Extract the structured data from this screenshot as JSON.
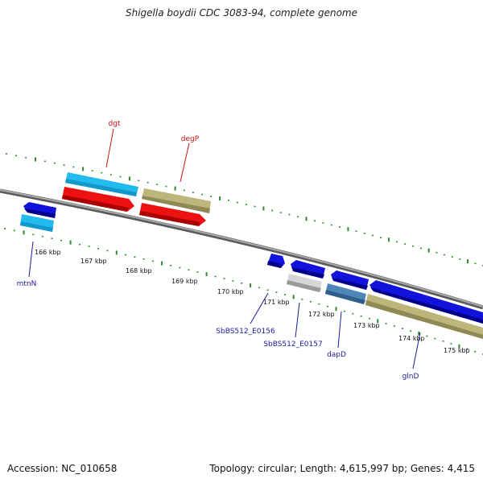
{
  "title": "Shigella boydii CDC 3083-94, complete genome",
  "footer": {
    "accession": "Accession: NC_010658",
    "topology": "Topology: circular; Length: 4,615,997 bp; Genes: 4,415"
  },
  "colors": {
    "backbone": "#8a8a8a",
    "tick": "#2e8b2e",
    "gene_blue": "#1212dd",
    "gene_cyan": "#22bbee",
    "gene_red": "#ee1111",
    "gene_olive": "#bdb57a",
    "gene_steel": "#4f86b8",
    "gene_grey": "#c4c4c4",
    "label_blue": "#1a1aa0",
    "label_red": "#cc1111"
  },
  "scale_labels": [
    "166 kbp",
    "167 kbp",
    "168 kbp",
    "169 kbp",
    "170 kbp",
    "171 kbp",
    "172 kbp",
    "173 kbp",
    "174 kbp",
    "175 kbp"
  ],
  "gene_labels": [
    "dgt",
    "degP",
    "mtnN",
    "SbBS512_E0156",
    "SbBS512_E0157",
    "dapD",
    "glnD"
  ]
}
